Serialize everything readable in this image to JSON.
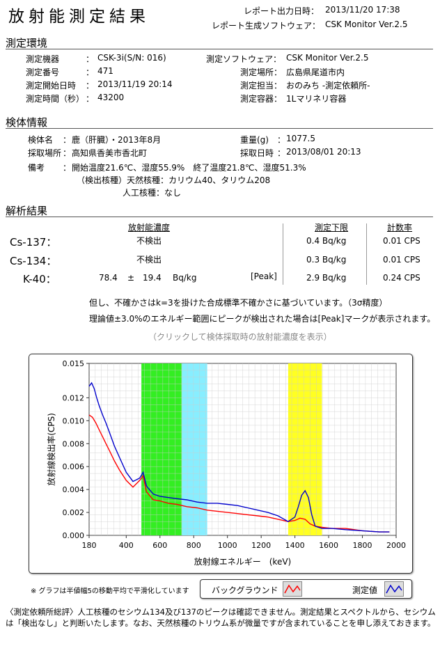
{
  "header": {
    "title": "放射能測定結果",
    "report_time_label": "レポート出力日時：",
    "report_time": "2013/11/20 17:38",
    "software_label": "レポート生成ソフトウェア：",
    "software": "CSK Monitor Ver.2.5"
  },
  "env": {
    "section_title": "測定環境",
    "device_label": "測定機器",
    "device": "CSK-3i(S/N: 016)",
    "number_label": "測定番号",
    "number": "471",
    "start_label": "測定開始日時",
    "start": "2013/11/19 20:14",
    "duration_label": "測定時間（秒）",
    "duration": "43200",
    "soft_label": "測定ソフトウェア：",
    "soft": "CSK Monitor Ver.2.5",
    "place_label": "測定場所：",
    "place": "広島県尾道市内",
    "staff_label": "測定担当：",
    "staff": "おのみち -測定依頼所-",
    "container_label": "測定容器：",
    "container": "1Lマリネリ容器",
    "colon": "："
  },
  "sample": {
    "section_title": "検体情報",
    "name_label": "検体名",
    "name": "鹿（肝臓）・2013年8月",
    "weight_label": "重量(g)",
    "weight": "1077.5",
    "loc_label": "採取場所",
    "loc": "高知県香美市香北町",
    "date_label": "採取日時",
    "date": "2013/08/01 20:13",
    "note_label": "備考",
    "colon": "：",
    "note1": "開始温度21.6℃、湿度55.9%　終了温度21.8℃、湿度51.3%",
    "note2": "（検出核種）天然核種：カリウム40、タリウム208",
    "note3": "人工核種：なし"
  },
  "results": {
    "section_title": "解析結果",
    "col_conc": "放射能濃度",
    "col_limit": "測定下限",
    "col_cps": "計数率",
    "rows": [
      {
        "nuclide": "Cs-137：",
        "conc": "不検出",
        "limit": "0.4 Bq/kg",
        "cps": "0.01 CPS"
      },
      {
        "nuclide": "Cs-134：",
        "conc": "不検出",
        "limit": "0.3 Bq/kg",
        "cps": "0.01 CPS"
      },
      {
        "nuclide": "K-40：",
        "conc_val": "78.4",
        "pm": "±",
        "conc_err": "19.4",
        "unit": "Bq/kg",
        "peak": "[Peak]",
        "limit": "2.9 Bq/kg",
        "cps": "0.24 CPS"
      }
    ],
    "note1": "但し、不確かさはk=3を掛けた合成標準不確かさに基づいています。（3σ精度）",
    "note2": "理論値±3.0%のエネルギー範囲にピークが検出された場合は[Peak]マークが表示されます。",
    "click_note": "（クリックして検体採取時の放射能濃度を表示）"
  },
  "chart_data": {
    "type": "line",
    "xlabel": "放射線エネルギー　(keV)",
    "ylabel": "放射線検出率(CPS)",
    "xlim": [
      180,
      2000
    ],
    "ylim": [
      0,
      0.015
    ],
    "xticks": [
      "180",
      "400",
      "600",
      "800",
      "1000",
      "1200",
      "1400",
      "1600",
      "1800",
      "2000"
    ],
    "yticks": [
      "0.000",
      "0.002",
      "0.004",
      "0.006",
      "0.008",
      "0.010",
      "0.012",
      "0.015"
    ],
    "ytick_values": [
      0,
      0.002,
      0.004,
      0.006,
      0.008,
      0.01,
      0.012,
      0.015
    ],
    "bands": [
      {
        "from": 490,
        "to": 730,
        "color": "#33ee22"
      },
      {
        "from": 730,
        "to": 880,
        "color": "#88eeff"
      },
      {
        "from": 1360,
        "to": 1560,
        "color": "#ffff22"
      }
    ],
    "series": [
      {
        "name": "バックグラウンド",
        "color": "#ff0000",
        "x": [
          180,
          200,
          220,
          240,
          260,
          280,
          300,
          330,
          360,
          400,
          440,
          480,
          500,
          520,
          560,
          600,
          650,
          700,
          760,
          820,
          880,
          940,
          1000,
          1060,
          1120,
          1180,
          1240,
          1300,
          1360,
          1400,
          1430,
          1460,
          1490,
          1520,
          1560,
          1620,
          1700,
          1800,
          1900,
          1960
        ],
        "y": [
          0.0105,
          0.0103,
          0.0098,
          0.0092,
          0.0086,
          0.008,
          0.0074,
          0.0065,
          0.0057,
          0.0048,
          0.0042,
          0.0048,
          0.0052,
          0.0038,
          0.0031,
          0.003,
          0.0028,
          0.0027,
          0.0025,
          0.0024,
          0.0022,
          0.0021,
          0.002,
          0.0019,
          0.0018,
          0.0017,
          0.0016,
          0.0014,
          0.0012,
          0.0013,
          0.0015,
          0.0014,
          0.001,
          0.0008,
          0.0007,
          0.0006,
          0.0006,
          0.0004,
          0.0003,
          0.0003
        ]
      },
      {
        "name": "測定値",
        "color": "#0000cc",
        "x": [
          180,
          195,
          210,
          225,
          240,
          260,
          280,
          300,
          330,
          360,
          400,
          440,
          480,
          500,
          520,
          560,
          600,
          650,
          700,
          760,
          820,
          880,
          940,
          1000,
          1060,
          1120,
          1180,
          1240,
          1300,
          1360,
          1400,
          1420,
          1440,
          1460,
          1480,
          1500,
          1520,
          1560,
          1620,
          1700,
          1800,
          1900,
          1960
        ],
        "y": [
          0.013,
          0.0133,
          0.0128,
          0.012,
          0.0113,
          0.0105,
          0.0098,
          0.009,
          0.0078,
          0.0068,
          0.0055,
          0.0047,
          0.005,
          0.0055,
          0.0043,
          0.0036,
          0.0034,
          0.0033,
          0.0032,
          0.0031,
          0.0029,
          0.0028,
          0.0028,
          0.0027,
          0.0026,
          0.0024,
          0.0022,
          0.002,
          0.0017,
          0.0012,
          0.0016,
          0.0025,
          0.0035,
          0.0039,
          0.0033,
          0.0018,
          0.0008,
          0.0006,
          0.0006,
          0.0005,
          0.0004,
          0.0003,
          0.0003
        ]
      }
    ]
  },
  "graph_note": "※ グラフは半値幅5の移動平均で平滑化しています",
  "legend": {
    "bg": "バックグラウンド",
    "meas": "測定値"
  },
  "footer": "〈測定依頼所総評〉人工核種のセシウム134及び137のピークは確認できません。測定結果とスペクトルから、セシウムは「検出なし」と判断いたします。なお、天然核種のトリウム系が微量ですが含まれていることを申し添えておきます。"
}
